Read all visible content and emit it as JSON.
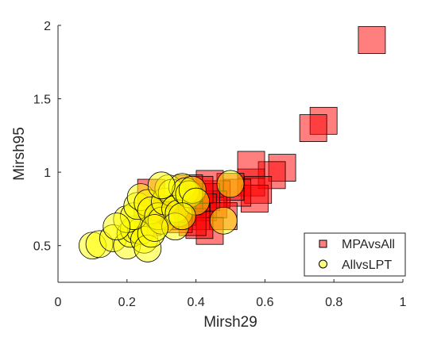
{
  "chart_data": {
    "type": "scatter",
    "xlabel": "Mirsh29",
    "ylabel": "Mirsh95",
    "xlim": [
      0,
      1
    ],
    "ylim": [
      0.25,
      2
    ],
    "xticks": [
      0,
      0.2,
      0.4,
      0.6,
      0.8,
      1
    ],
    "yticks": [
      0.5,
      1,
      1.5,
      2
    ],
    "xtick_labels": [
      "0",
      "0.2",
      "0.4",
      "0.6",
      "0.8",
      "1"
    ],
    "ytick_labels": [
      "0.5",
      "1",
      "1.5",
      "2"
    ],
    "grid": false,
    "legend_position": "bottom-right",
    "series": [
      {
        "name": "MPAvsAll",
        "marker": "square",
        "color": "#ff0000",
        "alpha": 0.5,
        "points": [
          [
            0.91,
            1.9
          ],
          [
            0.77,
            1.35
          ],
          [
            0.74,
            1.3
          ],
          [
            0.65,
            1.03
          ],
          [
            0.62,
            0.98
          ],
          [
            0.56,
            0.93
          ],
          [
            0.56,
            1.05
          ],
          [
            0.58,
            0.88
          ],
          [
            0.57,
            0.82
          ],
          [
            0.52,
            0.86
          ],
          [
            0.5,
            0.9
          ],
          [
            0.46,
            0.85
          ],
          [
            0.44,
            0.92
          ],
          [
            0.45,
            0.78
          ],
          [
            0.43,
            0.83
          ],
          [
            0.42,
            0.76
          ],
          [
            0.4,
            0.7
          ],
          [
            0.38,
            0.8
          ],
          [
            0.36,
            0.73
          ],
          [
            0.41,
            0.88
          ],
          [
            0.48,
            0.7
          ],
          [
            0.44,
            0.6
          ],
          [
            0.41,
            0.64
          ],
          [
            0.39,
            0.66
          ],
          [
            0.35,
            0.68
          ],
          [
            0.33,
            0.75
          ],
          [
            0.28,
            0.72
          ],
          [
            0.26,
            0.66
          ],
          [
            0.31,
            0.7
          ],
          [
            0.27,
            0.86
          ],
          [
            0.38,
            0.89
          ]
        ]
      },
      {
        "name": "AllvsLPT",
        "marker": "circle",
        "color": "#ffff00",
        "alpha": 0.5,
        "points": [
          [
            0.1,
            0.5
          ],
          [
            0.12,
            0.51
          ],
          [
            0.16,
            0.55
          ],
          [
            0.2,
            0.5
          ],
          [
            0.21,
            0.58
          ],
          [
            0.22,
            0.61
          ],
          [
            0.24,
            0.6
          ],
          [
            0.25,
            0.54
          ],
          [
            0.26,
            0.48
          ],
          [
            0.27,
            0.58
          ],
          [
            0.2,
            0.68
          ],
          [
            0.22,
            0.7
          ],
          [
            0.23,
            0.77
          ],
          [
            0.24,
            0.83
          ],
          [
            0.26,
            0.79
          ],
          [
            0.27,
            0.74
          ],
          [
            0.29,
            0.7
          ],
          [
            0.3,
            0.67
          ],
          [
            0.31,
            0.8
          ],
          [
            0.32,
            0.89
          ],
          [
            0.33,
            0.86
          ],
          [
            0.34,
            0.75
          ],
          [
            0.35,
            0.72
          ],
          [
            0.36,
            0.9
          ],
          [
            0.37,
            0.87
          ],
          [
            0.38,
            0.85
          ],
          [
            0.39,
            0.88
          ],
          [
            0.4,
            0.8
          ],
          [
            0.34,
            0.63
          ],
          [
            0.36,
            0.7
          ],
          [
            0.5,
            0.92
          ],
          [
            0.48,
            0.67
          ],
          [
            0.17,
            0.63
          ],
          [
            0.28,
            0.62
          ],
          [
            0.3,
            0.91
          ]
        ]
      }
    ]
  }
}
